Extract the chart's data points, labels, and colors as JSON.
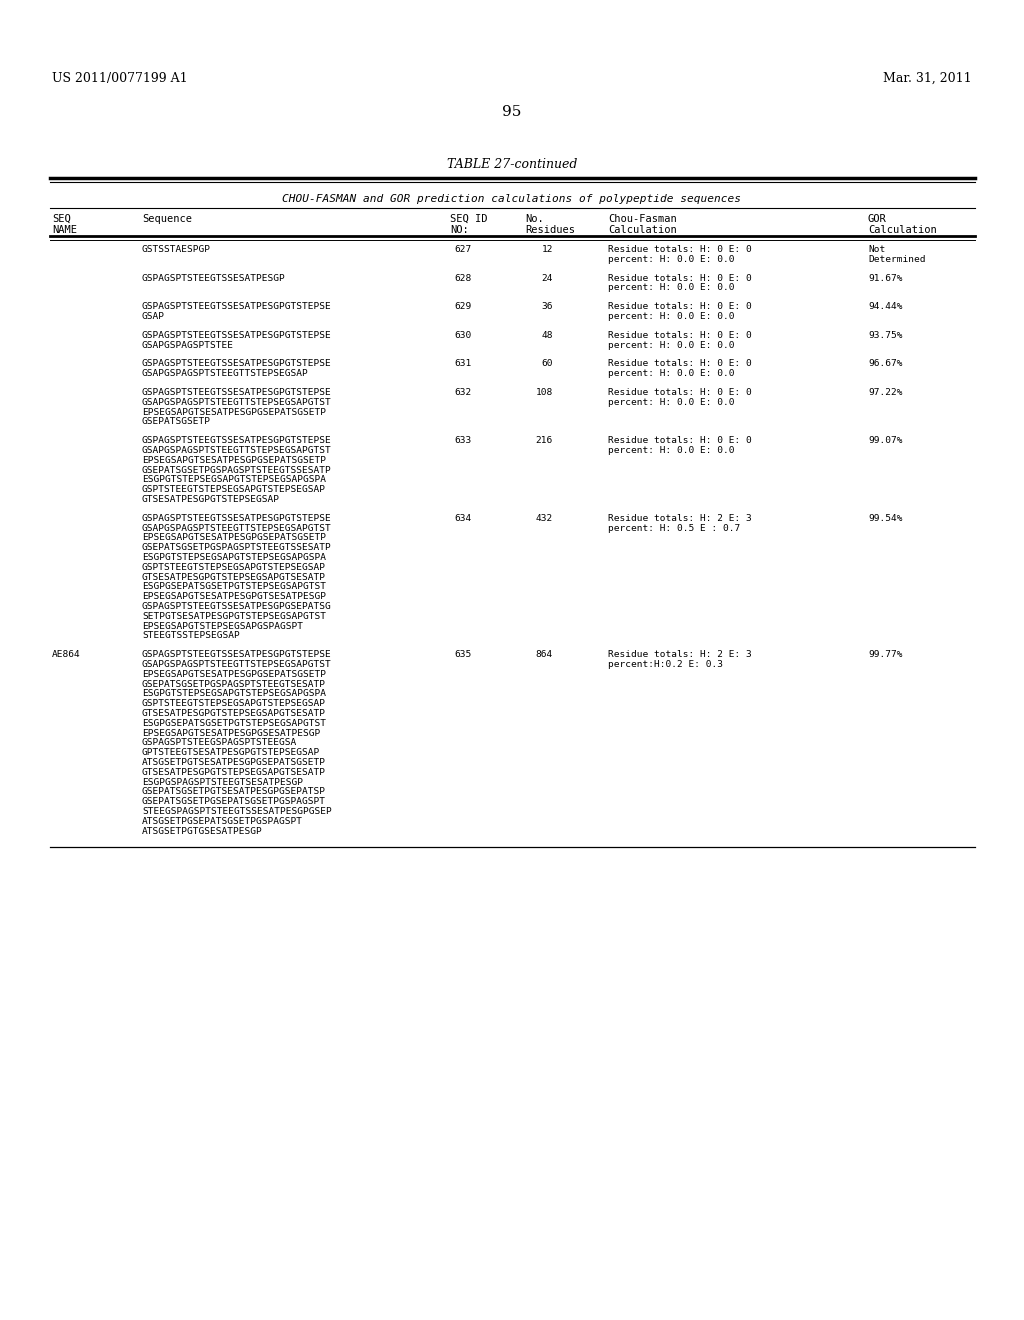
{
  "patent_left": "US 2011/0077199 A1",
  "patent_right": "Mar. 31, 2011",
  "page_number": "95",
  "table_title": "TABLE 27-continued",
  "table_subtitle": "CHOU-FASMAN and GOR prediction calculations of polypeptide sequences",
  "bg_color": "#ffffff",
  "text_color": "#000000",
  "rows": [
    {
      "name": "",
      "sequence": [
        "GSTSSTAESPGP"
      ],
      "seq_id": "627",
      "residues": "12",
      "chou_fasman": [
        "Residue totals: H: 0 E: 0",
        "percent: H: 0.0 E: 0.0"
      ],
      "gor": [
        "Not",
        "Determined"
      ]
    },
    {
      "name": "",
      "sequence": [
        "GSPAGSPTSTEEGTSSESATPESGP"
      ],
      "seq_id": "628",
      "residues": "24",
      "chou_fasman": [
        "Residue totals: H: 0 E: 0",
        "percent: H: 0.0 E: 0.0"
      ],
      "gor": [
        "91.67%"
      ]
    },
    {
      "name": "",
      "sequence": [
        "GSPAGSPTSTEEGTSSESATPESGPGTSTEPSE",
        "GSAP"
      ],
      "seq_id": "629",
      "residues": "36",
      "chou_fasman": [
        "Residue totals: H: 0 E: 0",
        "percent: H: 0.0 E: 0.0"
      ],
      "gor": [
        "94.44%"
      ]
    },
    {
      "name": "",
      "sequence": [
        "GSPAGSPTSTEEGTSSESATPESGPGTSTEPSE",
        "GSAPGSPAGSPTSTEE"
      ],
      "seq_id": "630",
      "residues": "48",
      "chou_fasman": [
        "Residue totals: H: 0 E: 0",
        "percent: H: 0.0 E: 0.0"
      ],
      "gor": [
        "93.75%"
      ]
    },
    {
      "name": "",
      "sequence": [
        "GSPAGSPTSTEEGTSSESATPESGPGTSTEPSE",
        "GSAPGSPAGSPTSTEEGTTSTEPSEGSAP"
      ],
      "seq_id": "631",
      "residues": "60",
      "chou_fasman": [
        "Residue totals: H: 0 E: 0",
        "percent: H: 0.0 E: 0.0"
      ],
      "gor": [
        "96.67%"
      ]
    },
    {
      "name": "",
      "sequence": [
        "GSPAGSPTSTEEGTSSESATPESGPGTSTEPSE",
        "GSAPGSPAGSPTSTEEGTTSTEPSEGSAPGTST",
        "EPSEGSAPGTSESATPESGPGSEPATSGSETP",
        "GSEPATSGSETP"
      ],
      "seq_id": "632",
      "residues": "108",
      "chou_fasman": [
        "Residue totals: H: 0 E: 0",
        "percent: H: 0.0 E: 0.0"
      ],
      "gor": [
        "97.22%"
      ]
    },
    {
      "name": "",
      "sequence": [
        "GSPAGSPTSTEEGTSSESATPESGPGTSTEPSE",
        "GSAPGSPAGSPTSTEEGTTSTEPSEGSAPGTST",
        "EPSEGSAPGTSESATPESGPGSEPATSGSETP",
        "GSEPATSGSETPGSPAGSPTSTEEGTSSESATP",
        "ESGPGTSTEPSEGSAPGTSTEPSEGSAPGSPA",
        "GSPTSTEEGTSTEPSEGSAPGTSTEPSEGSAP",
        "GTSESATPESGPGTSTEPSEGSAP"
      ],
      "seq_id": "633",
      "residues": "216",
      "chou_fasman": [
        "Residue totals: H: 0 E: 0",
        "percent: H: 0.0 E: 0.0"
      ],
      "gor": [
        "99.07%"
      ]
    },
    {
      "name": "",
      "sequence": [
        "GSPAGSPTSTEEGTSSESATPESGPGTSTEPSE",
        "GSAPGSPAGSPTSTEEGTTSTEPSEGSAPGTST",
        "EPSEGSAPGTSESATPESGPGSEPATSGSETP",
        "GSEPATSGSETPGSPAGSPTSTEEGTSSESATP",
        "ESGPGTSTEPSEGSAPGTSTEPSEGSAPGSPA",
        "GSPTSTEEGTSTEPSEGSAPGTSTEPSEGSAP",
        "GTSESATPESGPGTSTEPSEGSAPGTSESATP",
        "ESGPGSEPATSGSETPGTSTEPSEGSAPGTST",
        "EPSEGSAPGTSESATPESGPGTSESATPESGP",
        "GSPAGSPTSTEEGTSSESATPESGPGSEPATSG",
        "SETPGTSESATPESGPGTSTEPSEGSAPGTST",
        "EPSEGSAPGTSTEPSEGSAPGSPAGSPT",
        "STEEGTSSTEPSEGSAP"
      ],
      "seq_id": "634",
      "residues": "432",
      "chou_fasman": [
        "Residue totals: H: 2 E: 3",
        "percent: H: 0.5 E : 0.7"
      ],
      "gor": [
        "99.54%"
      ]
    },
    {
      "name": "AE864",
      "sequence": [
        "GSPAGSPTSTEEGTSSESATPESGPGTSTEPSE",
        "GSAPGSPAGSPTSTEEGTTSTEPSEGSAPGTST",
        "EPSEGSAPGTSESATPESGPGSEPATSGSETP",
        "GSEPATSGSETPGSPAGSPTSTEEGTSESATP",
        "ESGPGTSTEPSEGSAPGTSTEPSEGSAPGSPA",
        "GSPTSTEEGTSTEPSEGSAPGTSTEPSEGSAP",
        "GTSESATPESGPGTSTEPSEGSAPGTSESATP",
        "ESGPGSEPATSGSETPGTSTEPSEGSAPGTST",
        "EPSEGSAPGTSESATPESGPGSESATPESGP",
        "GSPAGSPTSTEEGSPAGSPTSTEEGSA",
        "GPTSTEEGTSESATPESGPGTSTEPSEGSAP",
        "ATSGSETPGTSESATPESGPGSEPATSGSETP",
        "GTSESATPESGPGTSTEPSEGSAPGTSESATP",
        "ESGPGSPAGSPTSTEEGTSESATPESGP",
        "GSEPATSGSETPGTSESATPESGPGSEPATSP",
        "GSEPATSGSETPGSEPATSGSETPGSPAGSPT",
        "STEEGSPAGSPTSTEEGTSSESATPESGPGSEP",
        "ATSGSETPGSEPATSGSETPGSPAGSPT",
        "ATSGSETPGTGSESATPESGP"
      ],
      "seq_id": "635",
      "residues": "864",
      "chou_fasman": [
        "Residue totals: H: 2 E: 3",
        "percent:H:0.2 E: 0.3"
      ],
      "gor": [
        "99.77%"
      ]
    }
  ]
}
